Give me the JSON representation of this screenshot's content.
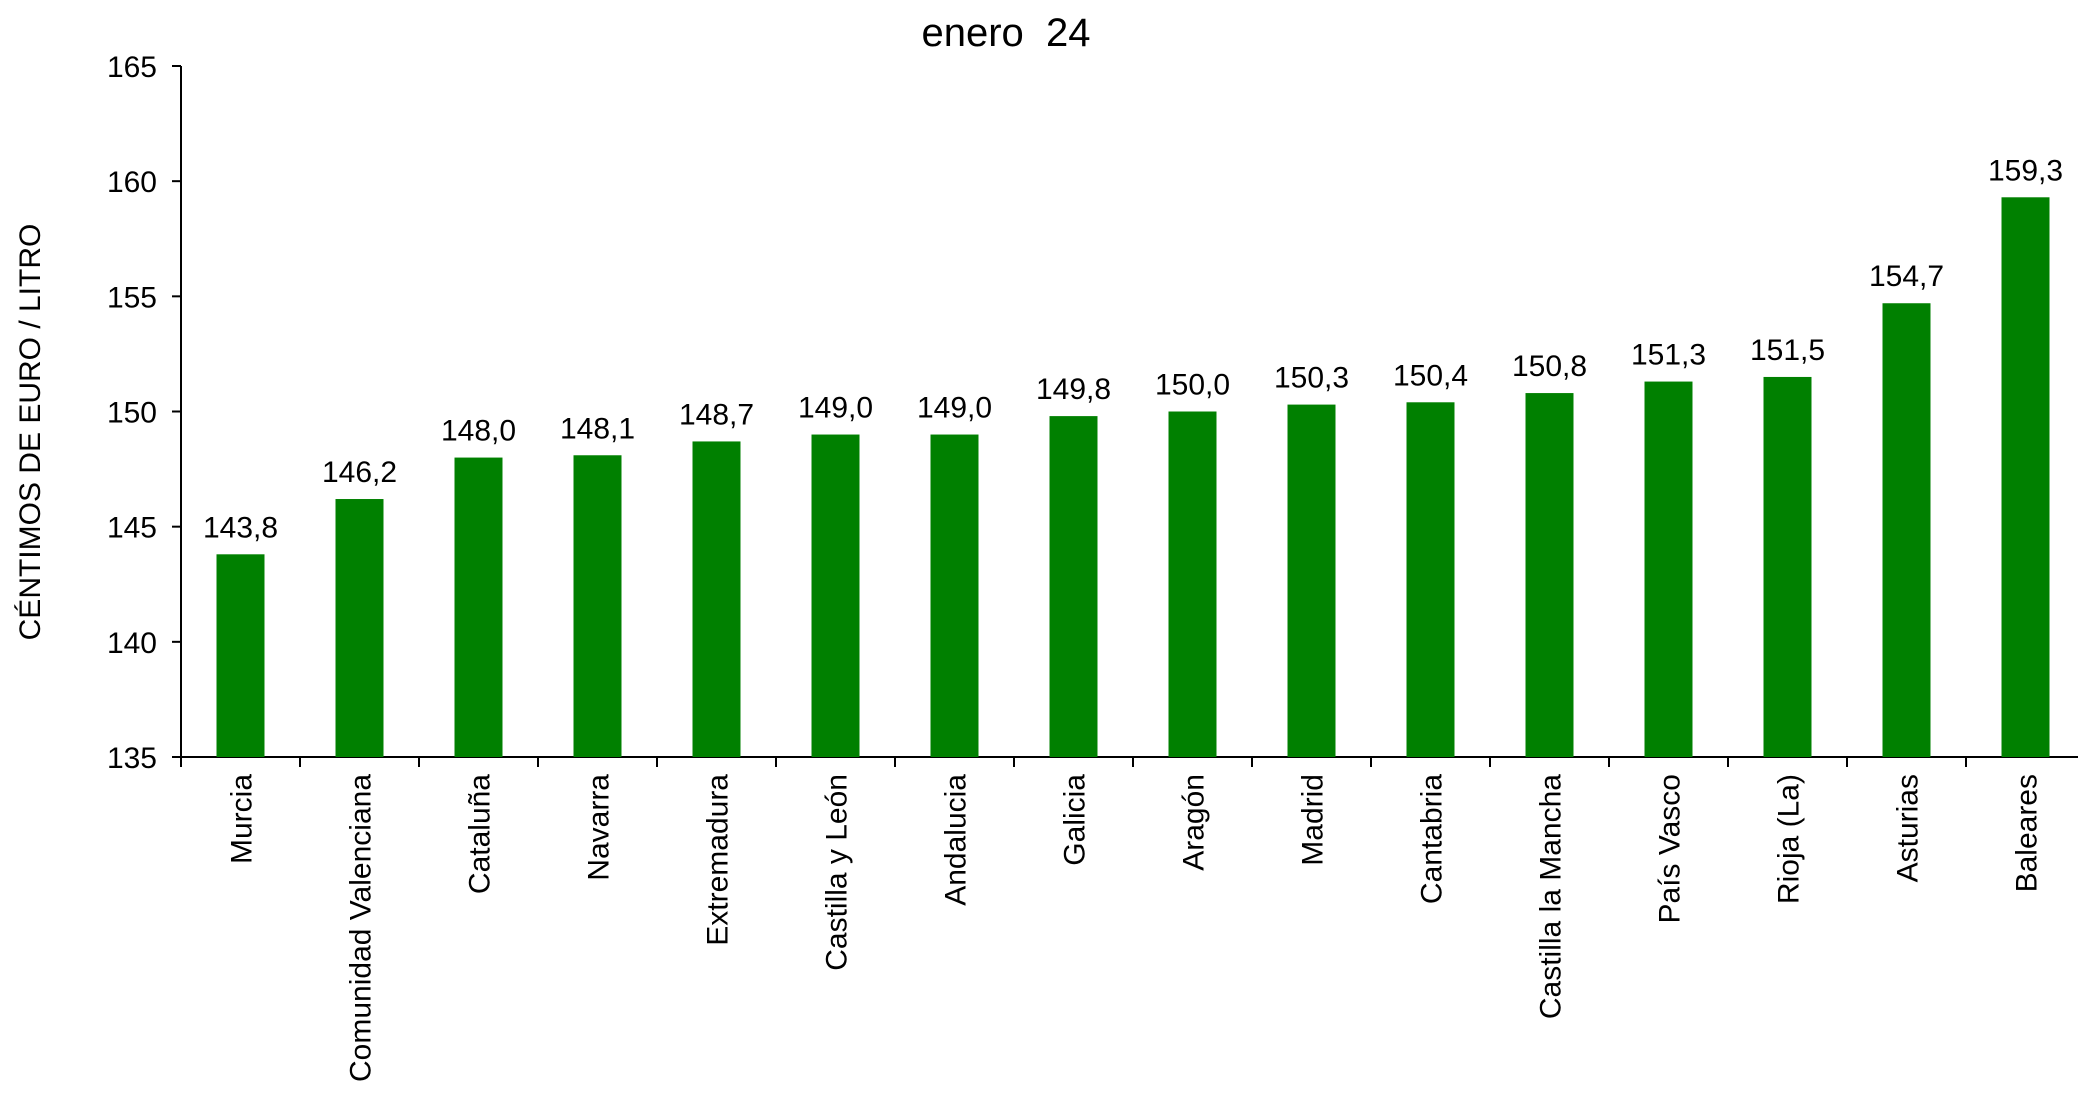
{
  "chart_data": {
    "type": "bar",
    "title": "enero  24",
    "ylabel": "CÉNTIMOS DE EURO / LITRO",
    "xlabel": "",
    "ylim": [
      135,
      165
    ],
    "yticks": [
      135,
      140,
      145,
      150,
      155,
      160,
      165
    ],
    "grid": false,
    "legend": "none",
    "bar_color": "#008000",
    "categories": [
      "Murcia",
      "Comunidad Valenciana",
      "Cataluña",
      "Navarra",
      "Extremadura",
      "Castilla y León",
      "Andalucia",
      "Galicia",
      "Aragón",
      "Madrid",
      "Cantabria",
      "Castilla la Mancha",
      "País Vasco",
      "Rioja (La)",
      "Asturias",
      "Baleares"
    ],
    "values": [
      143.8,
      146.2,
      148.0,
      148.1,
      148.7,
      149.0,
      149.0,
      149.8,
      150.0,
      150.3,
      150.4,
      150.8,
      151.3,
      151.5,
      154.7,
      159.3
    ],
    "value_labels": [
      "143,8",
      "146,2",
      "148,0",
      "148,1",
      "148,7",
      "149,0",
      "149,0",
      "149,8",
      "150,0",
      "150,3",
      "150,4",
      "150,8",
      "151,3",
      "151,5",
      "154,7",
      "159,3"
    ]
  }
}
